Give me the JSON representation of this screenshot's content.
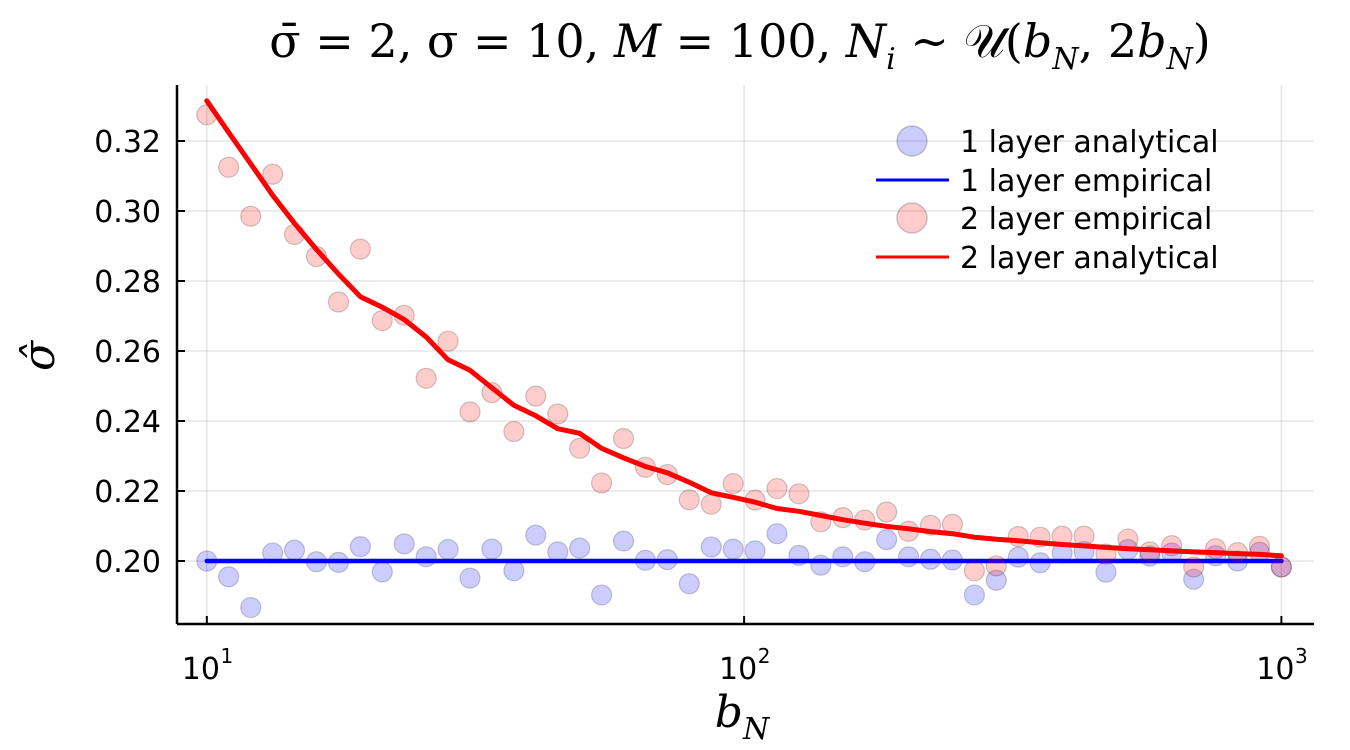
{
  "chart_data": {
    "type": "scatter",
    "title": "σ̄ = 2, σ = 10, M = 100, Nᵢ ~ 𝒰(b_N, 2b_N)",
    "title_segments": [
      "σ̄ = 2, σ = 10, ",
      "M",
      " = 100, ",
      "N",
      "i",
      " ∼ ",
      "𝒰",
      "(",
      "b",
      "N",
      ", 2",
      "b",
      "N",
      ")"
    ],
    "xlabel": "b_N",
    "xlabel_main": "b",
    "xlabel_sub": "N",
    "ylabel": "σ̂",
    "xscale": "log",
    "xlim": [
      8.8,
      1150
    ],
    "ylim": [
      0.182,
      0.336
    ],
    "grid": true,
    "legend_position": "top-right",
    "x_ticks": [
      {
        "value": 10,
        "base": "10",
        "exp": "1"
      },
      {
        "value": 100,
        "base": "10",
        "exp": "2"
      },
      {
        "value": 1000,
        "base": "10",
        "exp": "3"
      }
    ],
    "y_ticks": [
      {
        "value": 0.2,
        "label": "0.20"
      },
      {
        "value": 0.22,
        "label": "0.22"
      },
      {
        "value": 0.24,
        "label": "0.24"
      },
      {
        "value": 0.26,
        "label": "0.26"
      },
      {
        "value": 0.28,
        "label": "0.28"
      },
      {
        "value": 0.3,
        "label": "0.30"
      },
      {
        "value": 0.32,
        "label": "0.32"
      }
    ],
    "x": [
      10,
      10.98,
      12.07,
      13.26,
      14.56,
      16,
      17.58,
      19.31,
      21.21,
      23.3,
      25.6,
      28.12,
      30.89,
      33.93,
      37.28,
      40.95,
      44.99,
      49.42,
      54.29,
      59.64,
      65.52,
      71.97,
      79.06,
      86.85,
      95.41,
      104.81,
      115.14,
      126.48,
      138.95,
      152.64,
      167.68,
      184.2,
      202.35,
      222.29,
      244.2,
      268.27,
      294.7,
      323.75,
      355.65,
      390.7,
      429.21,
      471.5,
      517.97,
      569.01,
      625.09,
      686.69,
      754.36,
      828.7,
      910.37,
      1000
    ],
    "series": [
      {
        "name": "1 layer analytical",
        "kind": "scatter",
        "color": "#0000ff",
        "opacity": 0.2,
        "values": [
          0.2,
          0.1955,
          0.1867,
          0.2023,
          0.2031,
          0.1998,
          0.1996,
          0.2041,
          0.1969,
          0.2049,
          0.2012,
          0.2033,
          0.1951,
          0.2034,
          0.1972,
          0.2074,
          0.2026,
          0.2037,
          0.1903,
          0.2057,
          0.2002,
          0.2004,
          0.1935,
          0.204,
          0.2034,
          0.2029,
          0.2078,
          0.2016,
          0.1988,
          0.2012,
          0.1998,
          0.2061,
          0.2012,
          0.2005,
          0.2003,
          0.1903,
          0.1945,
          0.2011,
          0.1995,
          0.2023,
          0.2027,
          0.1968,
          0.2033,
          0.2014,
          0.2023,
          0.1948,
          0.2015,
          0.2,
          0.2025,
          0.1983
        ]
      },
      {
        "name": "1 layer empirical",
        "kind": "line",
        "color": "#0000ff",
        "values": [
          0.2,
          0.2,
          0.2,
          0.2,
          0.2,
          0.2,
          0.2,
          0.2,
          0.2,
          0.2,
          0.2,
          0.2,
          0.2,
          0.2,
          0.2,
          0.2,
          0.2,
          0.2,
          0.2,
          0.2,
          0.2,
          0.2,
          0.2,
          0.2,
          0.2,
          0.2,
          0.2,
          0.2,
          0.2,
          0.2,
          0.2,
          0.2,
          0.2,
          0.2,
          0.2,
          0.2,
          0.2,
          0.2,
          0.2,
          0.2,
          0.2,
          0.2,
          0.2,
          0.2,
          0.2,
          0.2,
          0.2,
          0.2,
          0.2,
          0.2
        ]
      },
      {
        "name": "2 layer empirical",
        "kind": "scatter",
        "color": "#ff0000",
        "opacity": 0.2,
        "values": [
          0.3275,
          0.3125,
          0.2985,
          0.3105,
          0.2933,
          0.287,
          0.274,
          0.2891,
          0.2687,
          0.2702,
          0.2522,
          0.2628,
          0.2426,
          0.2481,
          0.237,
          0.2471,
          0.242,
          0.2322,
          0.2223,
          0.235,
          0.2268,
          0.2247,
          0.2175,
          0.2162,
          0.2221,
          0.2174,
          0.2207,
          0.2192,
          0.2112,
          0.2124,
          0.2117,
          0.214,
          0.2085,
          0.2102,
          0.2105,
          0.1972,
          0.1986,
          0.207,
          0.2068,
          0.2071,
          0.2071,
          0.202,
          0.2063,
          0.2026,
          0.2044,
          0.1983,
          0.2035,
          0.2024,
          0.2042,
          0.1983
        ]
      },
      {
        "name": "2 layer analytical",
        "kind": "line",
        "color": "#ff0000",
        "values": [
          0.3315,
          0.3225,
          0.3135,
          0.3045,
          0.2965,
          0.289,
          0.282,
          0.2755,
          0.2725,
          0.269,
          0.264,
          0.2575,
          0.2545,
          0.2495,
          0.2445,
          0.2415,
          0.2378,
          0.2365,
          0.2322,
          0.2295,
          0.227,
          0.2252,
          0.2225,
          0.2195,
          0.2182,
          0.2168,
          0.215,
          0.2142,
          0.213,
          0.2118,
          0.2108,
          0.2099,
          0.2092,
          0.2084,
          0.2078,
          0.2068,
          0.2062,
          0.2058,
          0.2052,
          0.2047,
          0.2043,
          0.2039,
          0.2035,
          0.2032,
          0.2029,
          0.2026,
          0.2024,
          0.2021,
          0.2019,
          0.2015
        ]
      }
    ]
  }
}
